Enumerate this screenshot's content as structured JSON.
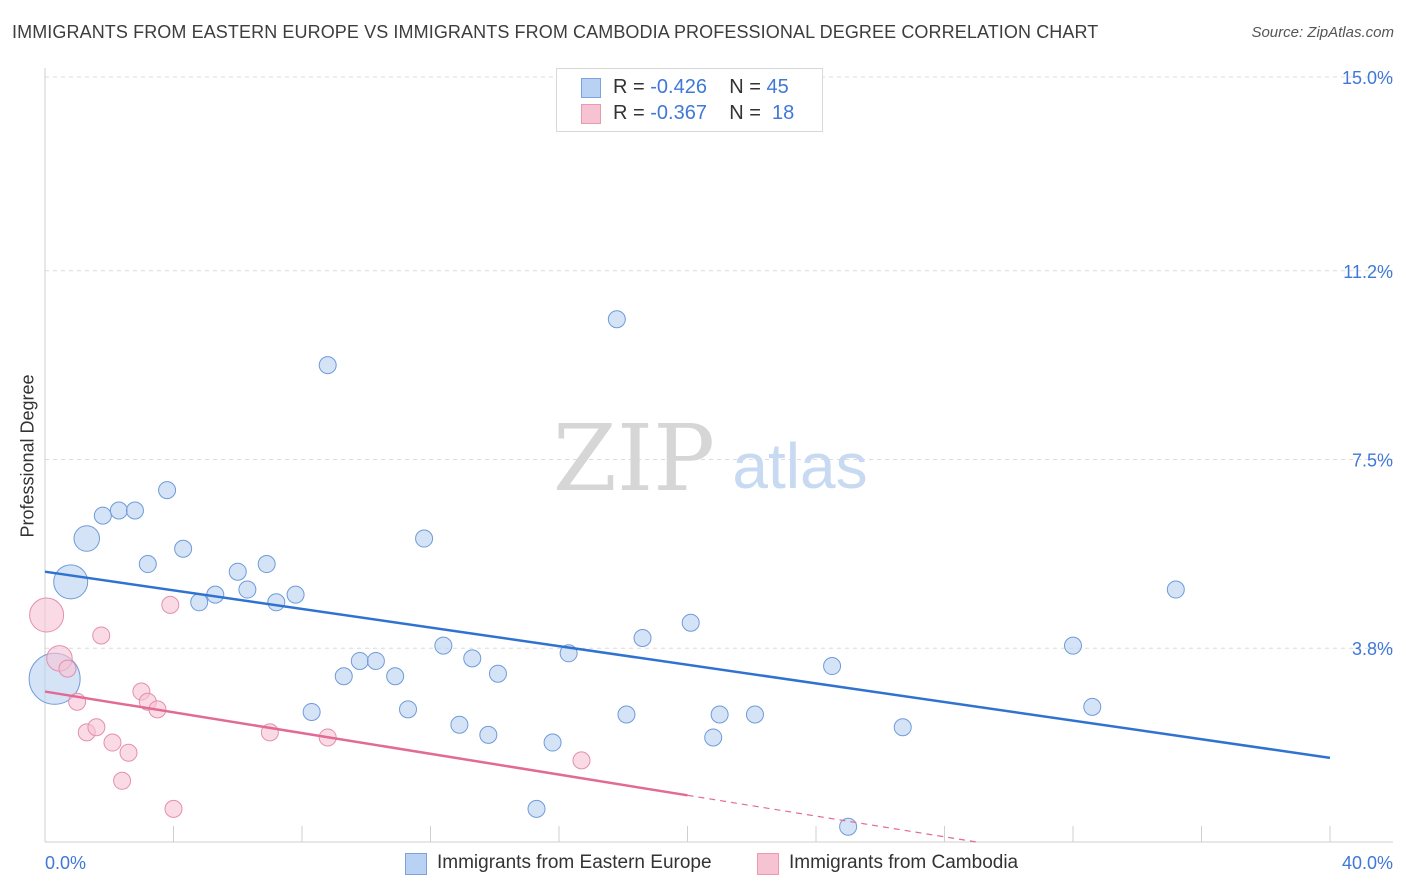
{
  "header": {
    "title": "IMMIGRANTS FROM EASTERN EUROPE VS IMMIGRANTS FROM CAMBODIA PROFESSIONAL DEGREE CORRELATION CHART",
    "source": "Source: ZipAtlas.com"
  },
  "watermark": {
    "zip": "ZIP",
    "atlas": "atlas"
  },
  "colors": {
    "blue_fill": "#b9d1f2",
    "blue_line": "#2f72d0",
    "pink_fill": "#f7c3d3",
    "pink_line": "#e26b96",
    "tick_label": "#3f78d8",
    "grid": "#dcdcdc"
  },
  "stats_legend": {
    "rows": [
      {
        "r_label": "R =",
        "r_value": "-0.426",
        "n_label": "N =",
        "n_value": "45"
      },
      {
        "r_label": "R =",
        "r_value": "-0.367",
        "n_label": "N =",
        "n_value": "18"
      }
    ]
  },
  "chart_data": {
    "type": "scatter",
    "title": "IMMIGRANTS FROM EASTERN EUROPE VS IMMIGRANTS FROM CAMBODIA PROFESSIONAL DEGREE CORRELATION CHART",
    "xlabel": "",
    "ylabel": "Professional Degree",
    "xlim": [
      0,
      40
    ],
    "ylim": [
      0,
      15
    ],
    "x_tick_labels": [
      "0.0%",
      "40.0%"
    ],
    "y_ticks": [
      3.8,
      7.5,
      11.2,
      15.0
    ],
    "y_tick_labels": [
      "3.8%",
      "7.5%",
      "11.2%",
      "15.0%"
    ],
    "grid": true,
    "legend_position": "bottom-center",
    "series": [
      {
        "name": "Immigrants from Eastern Europe",
        "color": "blue",
        "trend": {
          "x": [
            0,
            40
          ],
          "y": [
            5.3,
            1.65
          ],
          "dashed_from": null
        },
        "points": [
          [
            0.3,
            3.2,
            3
          ],
          [
            0.8,
            5.1,
            2
          ],
          [
            1.3,
            5.95,
            1.5
          ],
          [
            1.8,
            6.4,
            1
          ],
          [
            2.3,
            6.5,
            1
          ],
          [
            2.8,
            6.5,
            1
          ],
          [
            3.2,
            5.45,
            1
          ],
          [
            3.8,
            6.9,
            1
          ],
          [
            4.3,
            5.75,
            1
          ],
          [
            4.8,
            4.7,
            1
          ],
          [
            5.3,
            4.85,
            1
          ],
          [
            6.0,
            5.3,
            1
          ],
          [
            6.3,
            4.95,
            1
          ],
          [
            6.9,
            5.45,
            1
          ],
          [
            7.2,
            4.7,
            1
          ],
          [
            7.8,
            4.85,
            1
          ],
          [
            8.3,
            2.55,
            1
          ],
          [
            8.8,
            9.35,
            1
          ],
          [
            9.3,
            3.25,
            1
          ],
          [
            9.8,
            3.55,
            1
          ],
          [
            10.3,
            3.55,
            1
          ],
          [
            10.9,
            3.25,
            1
          ],
          [
            11.3,
            2.6,
            1
          ],
          [
            11.8,
            5.95,
            1
          ],
          [
            12.4,
            3.85,
            1
          ],
          [
            12.9,
            2.3,
            1
          ],
          [
            13.3,
            3.6,
            1
          ],
          [
            13.8,
            2.1,
            1
          ],
          [
            14.1,
            3.3,
            1
          ],
          [
            15.3,
            0.65,
            1
          ],
          [
            15.8,
            1.95,
            1
          ],
          [
            16.3,
            3.7,
            1
          ],
          [
            17.8,
            10.25,
            1
          ],
          [
            18.1,
            2.5,
            1
          ],
          [
            18.6,
            4.0,
            1
          ],
          [
            20.1,
            4.3,
            1
          ],
          [
            20.8,
            2.05,
            1
          ],
          [
            21.0,
            2.5,
            1
          ],
          [
            22.1,
            2.5,
            1
          ],
          [
            24.5,
            3.45,
            1
          ],
          [
            25.0,
            0.3,
            1
          ],
          [
            26.7,
            2.25,
            1
          ],
          [
            32.0,
            3.85,
            1
          ],
          [
            32.6,
            2.65,
            1
          ],
          [
            35.2,
            4.95,
            1
          ]
        ]
      },
      {
        "name": "Immigrants from Cambodia",
        "color": "pink",
        "trend": {
          "x": [
            0,
            29
          ],
          "y": [
            2.95,
            0.0
          ],
          "dashed_from": 20
        },
        "points": [
          [
            0.05,
            4.45,
            2
          ],
          [
            0.45,
            3.6,
            1.5
          ],
          [
            0.7,
            3.4,
            1
          ],
          [
            1.0,
            2.75,
            1
          ],
          [
            1.3,
            2.15,
            1
          ],
          [
            1.6,
            2.25,
            1
          ],
          [
            1.75,
            4.05,
            1
          ],
          [
            2.1,
            1.95,
            1
          ],
          [
            2.4,
            1.2,
            1
          ],
          [
            2.6,
            1.75,
            1
          ],
          [
            3.0,
            2.95,
            1
          ],
          [
            3.2,
            2.75,
            1
          ],
          [
            3.5,
            2.6,
            1
          ],
          [
            3.9,
            4.65,
            1
          ],
          [
            4.0,
            0.65,
            1
          ],
          [
            7.0,
            2.15,
            1
          ],
          [
            8.8,
            2.05,
            1
          ],
          [
            16.7,
            1.6,
            1
          ]
        ]
      }
    ]
  }
}
